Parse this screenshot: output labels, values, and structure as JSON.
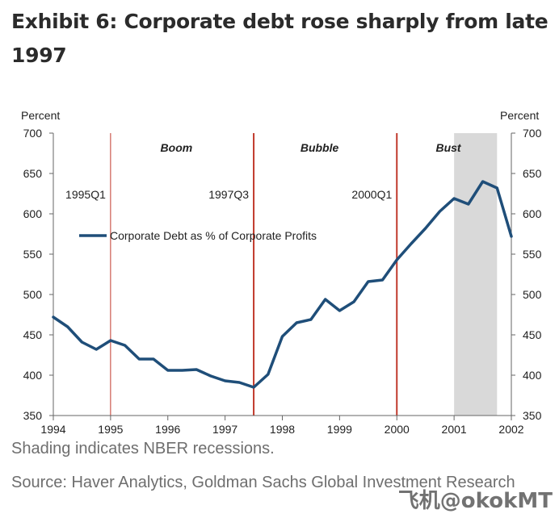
{
  "title": "Exhibit 6: Corporate debt rose sharply from late 1997",
  "note": "Shading indicates NBER recessions.",
  "source": "Source: Haver Analytics, Goldman Sachs Global Investment Research",
  "watermark": "飞机@okokMT",
  "colors": {
    "line": "#1f4e79",
    "vline": "#c0392b",
    "shade": "#d9d9d9",
    "axis": "#666666"
  },
  "chart_data": {
    "type": "line",
    "title": "Exhibit 6: Corporate debt rose sharply from late 1997",
    "ylabel_left": "Percent",
    "ylabel_right": "Percent",
    "xlim": [
      1994,
      2002
    ],
    "ylim": [
      350,
      700
    ],
    "yticks": [
      350,
      400,
      450,
      500,
      550,
      600,
      650,
      700
    ],
    "xticks": [
      1994,
      1995,
      1996,
      1997,
      1998,
      1999,
      2000,
      2001,
      2002
    ],
    "recession_shading": [
      2001.0,
      2001.75
    ],
    "phase_lines": [
      {
        "x": 1995.0,
        "label": "1995Q1"
      },
      {
        "x": 1997.5,
        "label": "1997Q3"
      },
      {
        "x": 2000.0,
        "label": "2000Q1"
      }
    ],
    "phase_labels": [
      {
        "x": 1996.15,
        "label": "Boom"
      },
      {
        "x": 1998.65,
        "label": "Bubble"
      },
      {
        "x": 2000.9,
        "label": "Bust"
      }
    ],
    "series": [
      {
        "name": "Corporate Debt as % of Corporate Profits",
        "x": [
          1994.0,
          1994.25,
          1994.5,
          1994.75,
          1995.0,
          1995.25,
          1995.5,
          1995.75,
          1996.0,
          1996.25,
          1996.5,
          1996.75,
          1997.0,
          1997.25,
          1997.5,
          1997.75,
          1998.0,
          1998.25,
          1998.5,
          1998.75,
          1999.0,
          1999.25,
          1999.5,
          1999.75,
          2000.0,
          2000.25,
          2000.5,
          2000.75,
          2001.0,
          2001.25,
          2001.5,
          2001.75,
          2002.0
        ],
        "values": [
          472,
          460,
          441,
          432,
          443,
          437,
          420,
          420,
          406,
          406,
          407,
          399,
          393,
          391,
          385,
          401,
          448,
          465,
          469,
          494,
          480,
          491,
          516,
          518,
          543,
          563,
          582,
          603,
          619,
          612,
          640,
          632,
          572
        ]
      }
    ],
    "legend": "upper-left"
  }
}
